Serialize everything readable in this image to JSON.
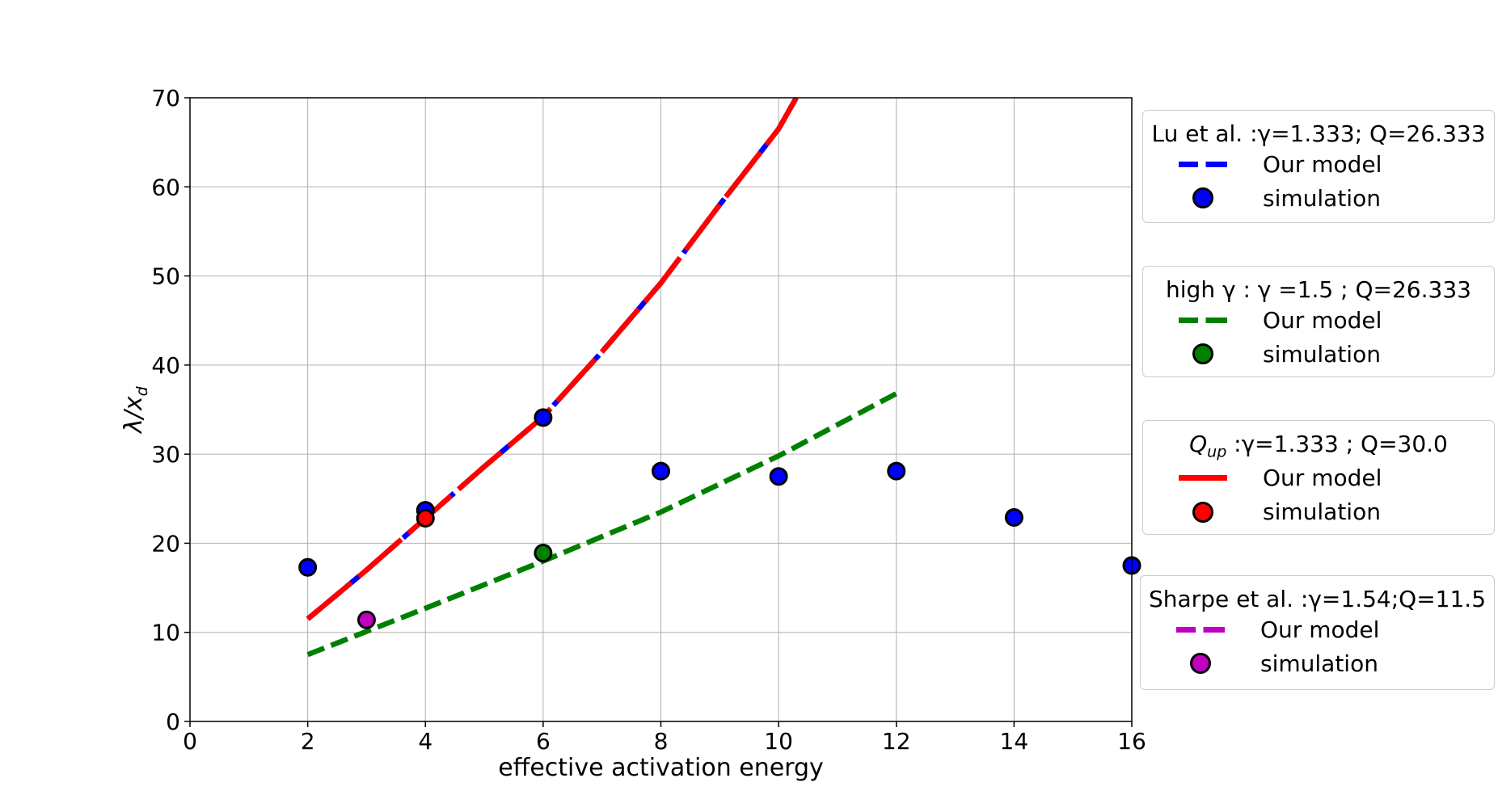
{
  "chart_data": {
    "type": "line",
    "xlabel": "effective activation energy",
    "ylabel_html": "λ/x<sub>d</sub>",
    "xlim": [
      0,
      16
    ],
    "ylim": [
      0,
      70
    ],
    "xticks": [
      0,
      2,
      4,
      6,
      8,
      10,
      12,
      14,
      16
    ],
    "yticks": [
      0,
      10,
      20,
      30,
      40,
      50,
      60,
      70
    ],
    "grid": true,
    "legend_placement": "right, outside plot",
    "colors": {
      "lu": "#0000ff",
      "high_gamma": "#008000",
      "qup": "#ff0000",
      "sharpe": "#bf00bf"
    },
    "groups": [
      {
        "key": "lu",
        "title": "Lu et al. :γ=1.333; Q=26.333",
        "model_label": "Our model",
        "sim_label": "simulation",
        "model": {
          "x": [
            2,
            3,
            4,
            5,
            6,
            7,
            8,
            9,
            10,
            10.3
          ],
          "y": [
            11.5,
            17.0,
            22.8,
            28.6,
            34.2,
            41.5,
            49.2,
            58.0,
            66.5,
            70.0
          ]
        },
        "simulation": {
          "x": [
            2,
            4,
            6,
            8,
            10,
            12,
            14,
            16
          ],
          "y": [
            17.3,
            23.7,
            34.1,
            28.1,
            27.5,
            28.1,
            22.9,
            17.5
          ]
        }
      },
      {
        "key": "high_gamma",
        "title": "high γ : γ =1.5 ; Q=26.333",
        "model_label": "Our model",
        "sim_label": "simulation",
        "model": {
          "x": [
            2,
            4,
            6,
            8,
            10,
            12
          ],
          "y": [
            7.5,
            12.7,
            18.0,
            23.5,
            29.8,
            36.8
          ]
        },
        "simulation": {
          "x": [
            6
          ],
          "y": [
            18.9
          ]
        }
      },
      {
        "key": "qup",
        "title_prefix": "Q",
        "title_sub": "up",
        "title_rest": "  :γ=1.333 ;  Q=30.0",
        "model_label": "Our model",
        "sim_label": "simulation",
        "model": {
          "x": [
            2,
            3,
            4,
            5,
            6,
            7,
            8,
            9,
            10,
            10.3
          ],
          "y": [
            11.5,
            17.0,
            22.8,
            28.6,
            34.2,
            41.5,
            49.2,
            58.0,
            66.5,
            70.0
          ]
        },
        "simulation": {
          "x": [
            4
          ],
          "y": [
            22.8
          ]
        }
      },
      {
        "key": "sharpe",
        "title": "Sharpe et al. :γ=1.54;Q=11.5",
        "model_label": "Our model",
        "sim_label": "simulation",
        "model": {
          "x": [],
          "y": []
        },
        "simulation": {
          "x": [
            3
          ],
          "y": [
            11.4
          ]
        }
      }
    ]
  }
}
